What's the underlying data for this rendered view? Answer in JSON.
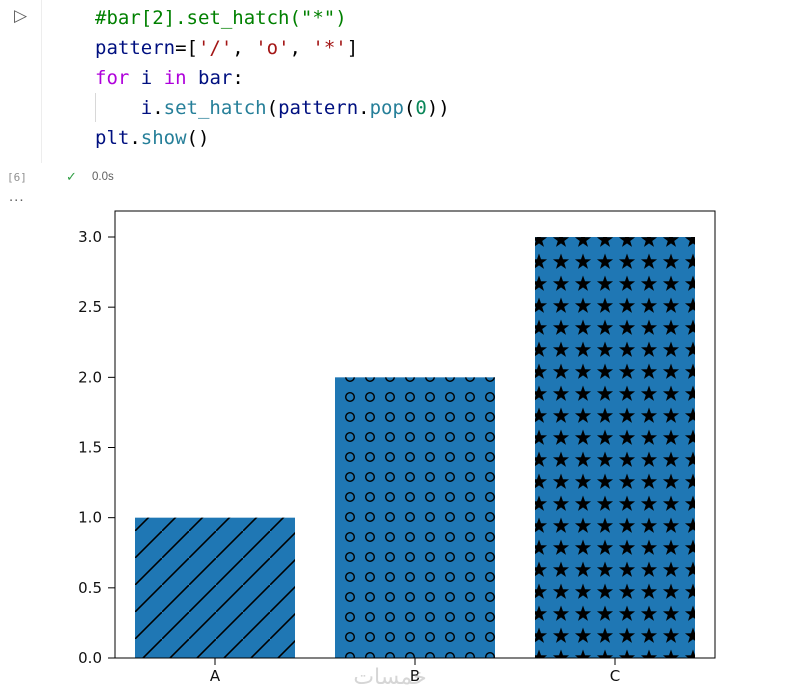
{
  "editor": {
    "run_glyph": "▷",
    "execution_count": "[6]",
    "check_glyph": "✓",
    "status_time": "0.0s",
    "collapsed_indicator": "...",
    "code_lines": [
      {
        "indent": 0,
        "tokens": [
          {
            "t": "#bar[2].set_hatch(\"*\")",
            "c": "comment"
          }
        ]
      },
      {
        "indent": 0,
        "tokens": [
          {
            "t": "pattern",
            "c": "variable"
          },
          {
            "t": "=[",
            "c": "punct"
          },
          {
            "t": "'/'",
            "c": "string"
          },
          {
            "t": ", ",
            "c": "punct"
          },
          {
            "t": "'o'",
            "c": "string"
          },
          {
            "t": ", ",
            "c": "punct"
          },
          {
            "t": "'*'",
            "c": "string"
          },
          {
            "t": "]",
            "c": "punct"
          }
        ]
      },
      {
        "indent": 0,
        "tokens": [
          {
            "t": "for",
            "c": "keyword"
          },
          {
            "t": " ",
            "c": "punct"
          },
          {
            "t": "i",
            "c": "variable"
          },
          {
            "t": " ",
            "c": "punct"
          },
          {
            "t": "in",
            "c": "keyword"
          },
          {
            "t": " ",
            "c": "punct"
          },
          {
            "t": "bar",
            "c": "variable"
          },
          {
            "t": ":",
            "c": "punct"
          }
        ]
      },
      {
        "indent": 1,
        "tokens": [
          {
            "t": "i",
            "c": "variable"
          },
          {
            "t": ".",
            "c": "punct"
          },
          {
            "t": "set_hatch",
            "c": "function"
          },
          {
            "t": "(",
            "c": "punct"
          },
          {
            "t": "pattern",
            "c": "variable"
          },
          {
            "t": ".",
            "c": "punct"
          },
          {
            "t": "pop",
            "c": "function"
          },
          {
            "t": "(",
            "c": "punct"
          },
          {
            "t": "0",
            "c": "number"
          },
          {
            "t": "))",
            "c": "punct"
          }
        ]
      },
      {
        "indent": 0,
        "tokens": [
          {
            "t": "plt",
            "c": "variable"
          },
          {
            "t": ".",
            "c": "punct"
          },
          {
            "t": "show",
            "c": "function"
          },
          {
            "t": "()",
            "c": "punct"
          }
        ]
      }
    ]
  },
  "colors": {
    "comment": "#008000",
    "keyword": "#af00db",
    "variable": "#001080",
    "string": "#a31515",
    "function": "#267f99",
    "number": "#098658",
    "punct": "#000000",
    "check": "#2f9e44",
    "watermark": "#d6d6d6"
  },
  "chart_data": {
    "type": "bar",
    "categories": [
      "A",
      "B",
      "C"
    ],
    "values": [
      1,
      2,
      3
    ],
    "hatches": [
      "/",
      "o",
      "*"
    ],
    "bar_color": "#1f77b4",
    "hatch_color": "#000000",
    "title": "",
    "xlabel": "",
    "ylabel": "",
    "ylim": [
      0,
      3.15
    ],
    "ytick_labels": [
      "0.0",
      "0.5",
      "1.0",
      "1.5",
      "2.0",
      "2.5",
      "3.0"
    ],
    "grid": false,
    "legend": false,
    "watermark": "خمسات"
  }
}
